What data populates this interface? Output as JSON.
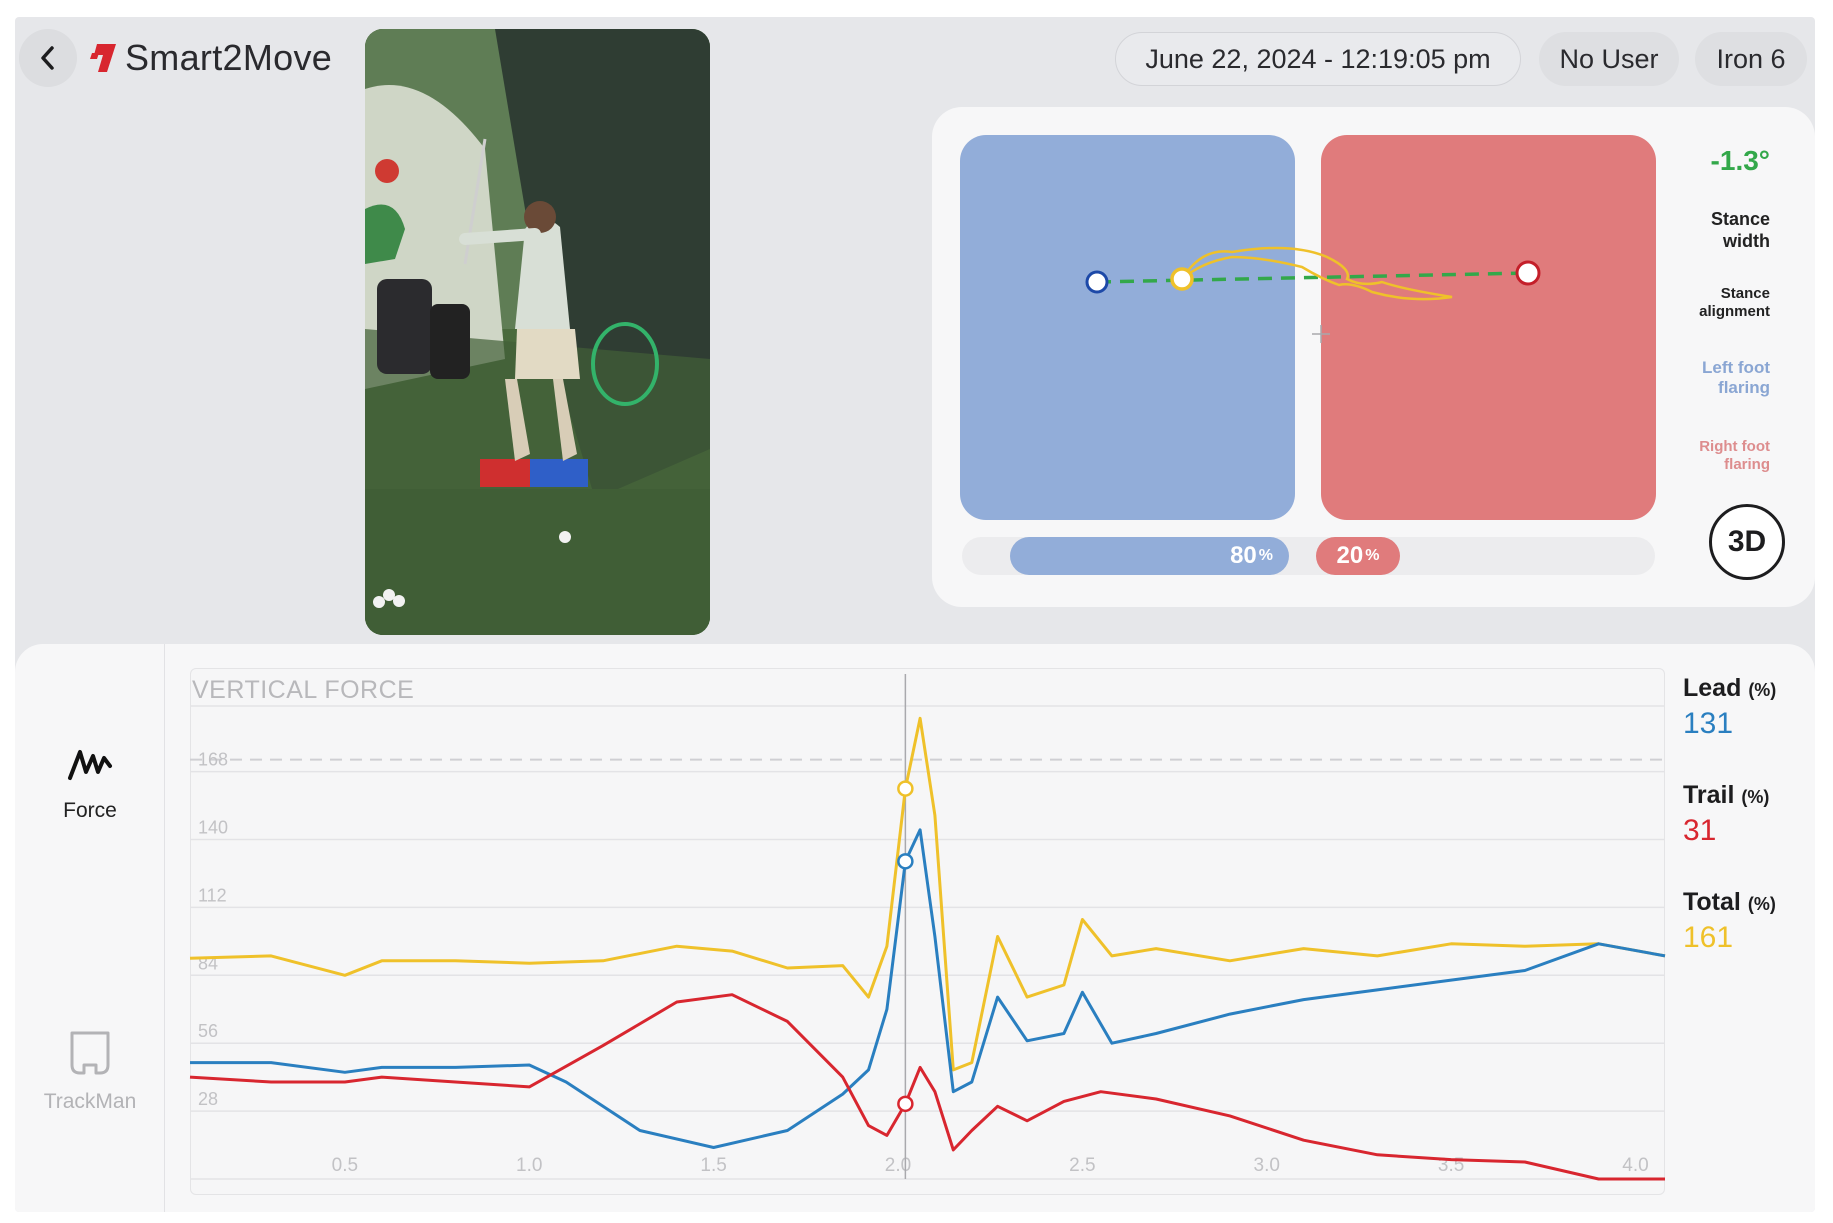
{
  "header": {
    "brand": "Smart2Move",
    "date": "June 22, 2024 - 12:19:05 pm",
    "user": "No User",
    "club": "Iron 6"
  },
  "colors": {
    "lead": "#2a7fc0",
    "trail": "#d8262f",
    "total": "#efc12a",
    "lead_plate": "#92add9",
    "trail_plate": "#e07b7c",
    "alignment_line": "#33a84a"
  },
  "pressure": {
    "stance_angle": "-1.3°",
    "metrics": [
      "Stance width",
      "Stance alignment",
      "Left foot flaring",
      "Right foot flaring"
    ],
    "lead_pct": "80",
    "trail_pct": "20",
    "pct_unit": "%",
    "view_3d": "3D",
    "lead_share": 0.8,
    "trail_share": 0.2
  },
  "nav": {
    "force": "Force",
    "trackman": "TrackMan"
  },
  "readouts": {
    "lead_label": "Lead",
    "trail_label": "Trail",
    "total_label": "Total",
    "unit": "(%)",
    "lead_value": "131",
    "trail_value": "31",
    "total_value": "161"
  },
  "chart_data": {
    "type": "line",
    "title": "VERTICAL FORCE",
    "xlim": [
      0.08,
      4.08
    ],
    "ylim": [
      0,
      200
    ],
    "xticks": [
      0.5,
      1.0,
      1.5,
      2.0,
      2.5,
      3.0,
      3.5,
      4.0
    ],
    "xtick_labels": [
      "0.5",
      "1.0",
      "1.5",
      "2.0",
      "2.5",
      "3.0",
      "3.5",
      "4.0"
    ],
    "yticks": [
      28,
      56,
      84,
      112,
      140,
      168
    ],
    "ytick_labels": [
      "28",
      "56",
      "84",
      "112",
      "140",
      "168"
    ],
    "reference_line": 168,
    "cursor_x": 2.02,
    "markers": [
      {
        "series": "Total",
        "x": 2.02,
        "y": 161
      },
      {
        "series": "Lead",
        "x": 2.02,
        "y": 131
      },
      {
        "series": "Trail",
        "x": 2.02,
        "y": 31
      }
    ],
    "series": [
      {
        "name": "Total",
        "x": [
          0.08,
          0.3,
          0.5,
          0.6,
          0.8,
          1.0,
          1.2,
          1.4,
          1.55,
          1.7,
          1.85,
          1.92,
          1.97,
          2.02,
          2.06,
          2.1,
          2.15,
          2.2,
          2.27,
          2.35,
          2.45,
          2.5,
          2.58,
          2.7,
          2.9,
          3.1,
          3.3,
          3.5,
          3.7,
          3.9,
          4.08
        ],
        "y": [
          91,
          92,
          84,
          90,
          90,
          89,
          90,
          96,
          94,
          87,
          88,
          75,
          96,
          161,
          190,
          150,
          45,
          48,
          100,
          75,
          80,
          107,
          92,
          95,
          90,
          95,
          92,
          97,
          96,
          97,
          92
        ]
      },
      {
        "name": "Lead",
        "x": [
          0.08,
          0.3,
          0.5,
          0.6,
          0.8,
          1.0,
          1.1,
          1.3,
          1.5,
          1.7,
          1.85,
          1.92,
          1.97,
          2.02,
          2.06,
          2.1,
          2.15,
          2.2,
          2.27,
          2.35,
          2.45,
          2.5,
          2.58,
          2.7,
          2.9,
          3.1,
          3.3,
          3.5,
          3.7,
          3.9,
          4.08
        ],
        "y": [
          48,
          48,
          44,
          46,
          46,
          47,
          40,
          20,
          13,
          20,
          35,
          45,
          70,
          131,
          144,
          100,
          36,
          40,
          75,
          57,
          60,
          77,
          56,
          60,
          68,
          74,
          78,
          82,
          86,
          97,
          92
        ]
      },
      {
        "name": "Trail",
        "x": [
          0.08,
          0.3,
          0.5,
          0.6,
          0.8,
          1.0,
          1.2,
          1.4,
          1.55,
          1.7,
          1.85,
          1.92,
          1.97,
          2.02,
          2.06,
          2.1,
          2.15,
          2.2,
          2.27,
          2.35,
          2.45,
          2.55,
          2.7,
          2.9,
          3.1,
          3.3,
          3.5,
          3.7,
          3.9,
          4.08
        ],
        "y": [
          42,
          40,
          40,
          42,
          40,
          38,
          55,
          73,
          76,
          65,
          42,
          22,
          18,
          31,
          46,
          36,
          12,
          20,
          30,
          24,
          32,
          36,
          33,
          26,
          16,
          10,
          8,
          7,
          0,
          0
        ]
      }
    ]
  }
}
